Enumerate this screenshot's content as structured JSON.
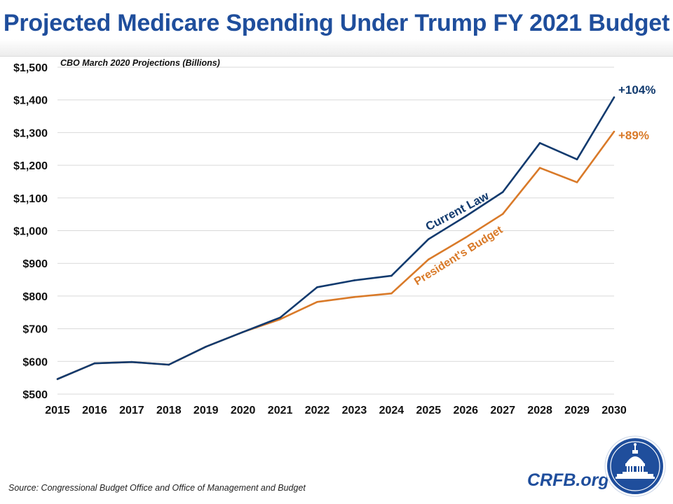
{
  "header": {
    "title": "Projected Medicare Spending Under Trump FY 2021 Budget"
  },
  "chart_data": {
    "type": "line",
    "title": "Projected Medicare Spending Under Trump FY 2021 Budget",
    "subtitle": "CBO March 2020 Projections (Billions)",
    "xlabel": "",
    "ylabel": "",
    "ylim": [
      500,
      1500
    ],
    "yticks": [
      500,
      600,
      700,
      800,
      900,
      1000,
      1100,
      1200,
      1300,
      1400,
      1500
    ],
    "ytick_labels": [
      "$500",
      "$600",
      "$700",
      "$800",
      "$900",
      "$1,000",
      "$1,100",
      "$1,200",
      "$1,300",
      "$1,400",
      "$1,500"
    ],
    "x": [
      "2015",
      "2016",
      "2017",
      "2018",
      "2019",
      "2020",
      "2021",
      "2022",
      "2023",
      "2024",
      "2025",
      "2026",
      "2027",
      "2028",
      "2029",
      "2030"
    ],
    "grid": true,
    "series": [
      {
        "name": "President's Budget",
        "color": "#d97a29",
        "values": [
          546,
          594,
          598,
          590,
          645,
          690,
          729,
          782,
          797,
          808,
          912,
          979,
          1051,
          1192,
          1148,
          1303
        ],
        "end_label": "+89%"
      },
      {
        "name": "Current Law",
        "color": "#113a6e",
        "values": [
          546,
          594,
          598,
          590,
          645,
          690,
          734,
          827,
          848,
          862,
          974,
          1044,
          1118,
          1268,
          1218,
          1408
        ],
        "end_label": "+104%"
      }
    ]
  },
  "footer": {
    "source": "Source: Congressional Budget Office and Office of Management and Budget",
    "site": "CRFB.org"
  },
  "colors": {
    "title": "#1f4e9c",
    "current_law": "#113a6e",
    "presidents_budget": "#d97a29",
    "grid": "#d9d9d9",
    "seal": "#1f4e9c"
  },
  "icons": {
    "seal": "capitol-dome-seal-icon"
  }
}
